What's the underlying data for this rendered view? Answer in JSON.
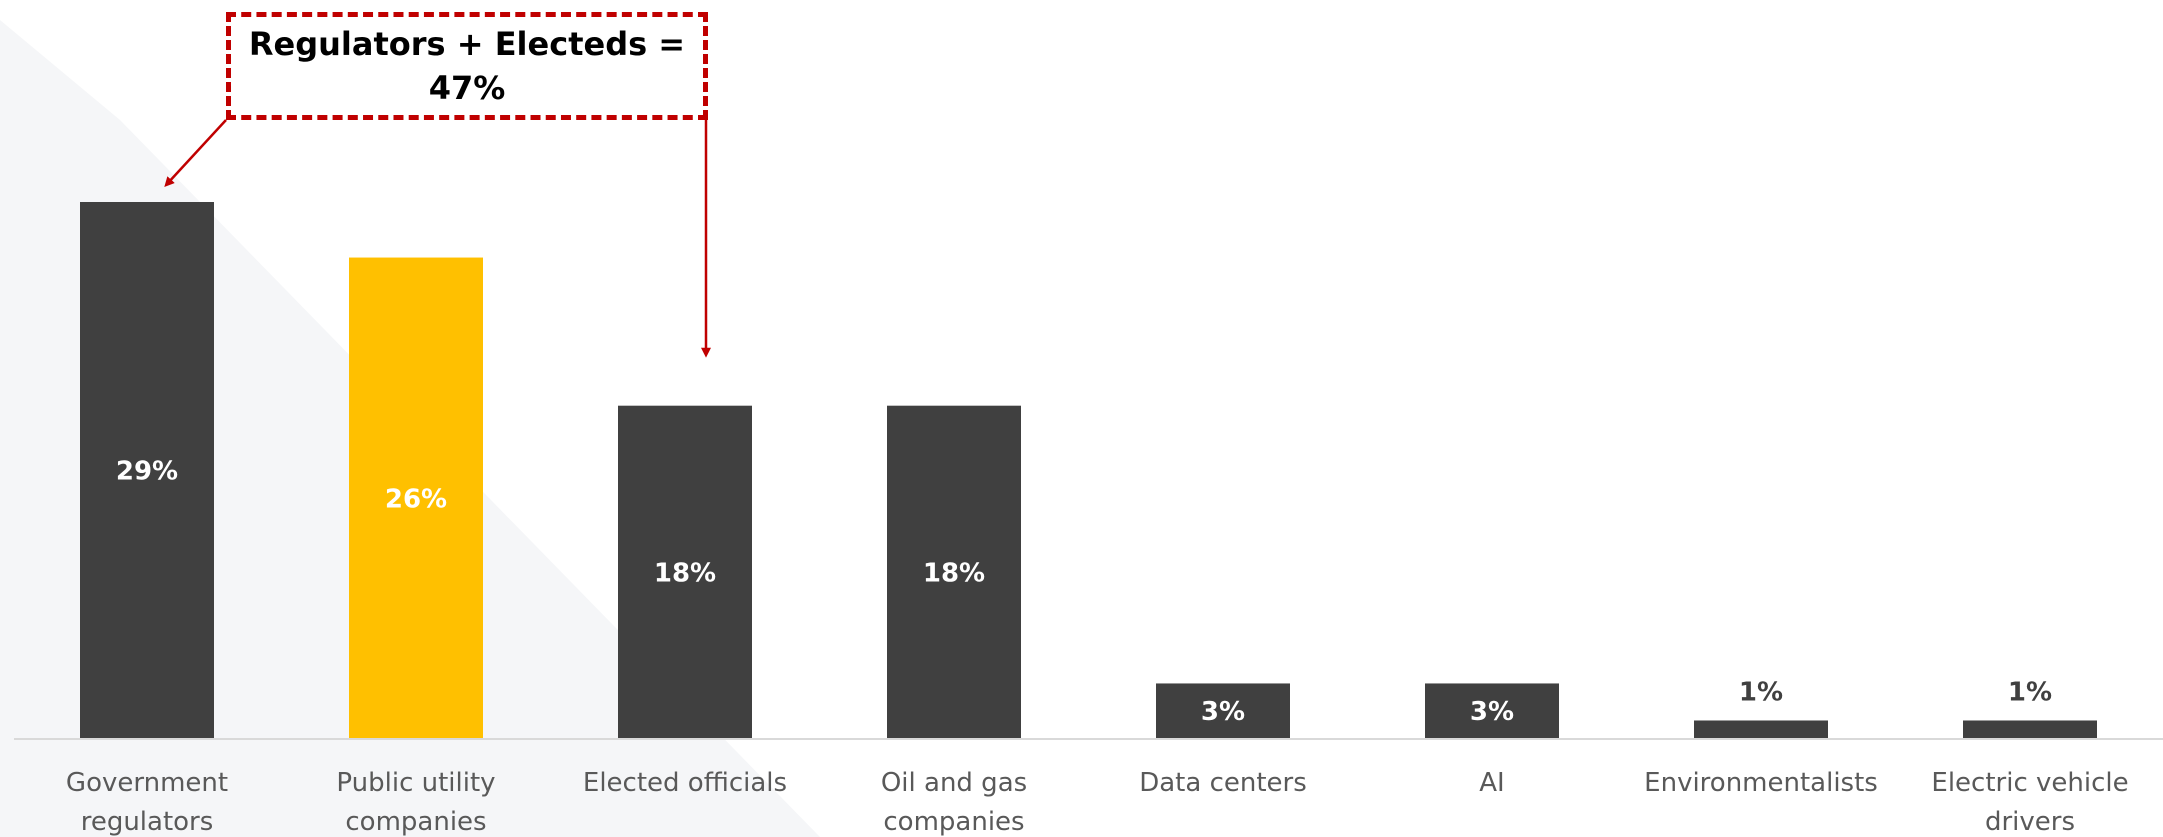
{
  "chart_data": {
    "type": "bar",
    "categories": [
      [
        "Government",
        "regulators"
      ],
      [
        "Public utility",
        "companies"
      ],
      [
        "Elected officials"
      ],
      [
        "Oil and gas",
        "companies"
      ],
      [
        "Data centers"
      ],
      [
        "AI"
      ],
      [
        "Environmentalists"
      ],
      [
        "Electric vehicle",
        "drivers"
      ]
    ],
    "values": [
      29,
      26,
      18,
      18,
      3,
      3,
      1,
      1
    ],
    "data_labels": [
      "29%",
      "26%",
      "18%",
      "18%",
      "3%",
      "3%",
      "1%",
      "1%"
    ],
    "highlight_index": 1,
    "ylim": [
      0,
      29
    ],
    "grid": false,
    "legend": "none",
    "colors": {
      "default_bar": "#404040",
      "highlight_bar": "#ffc000",
      "axis": "#d9d9d9",
      "label_inside": "#ffffff",
      "label_outside": "#404040",
      "callout": "#c00000"
    },
    "annotation": {
      "text": "Regulators + Electeds = 47%",
      "targets": [
        0,
        2
      ]
    }
  }
}
